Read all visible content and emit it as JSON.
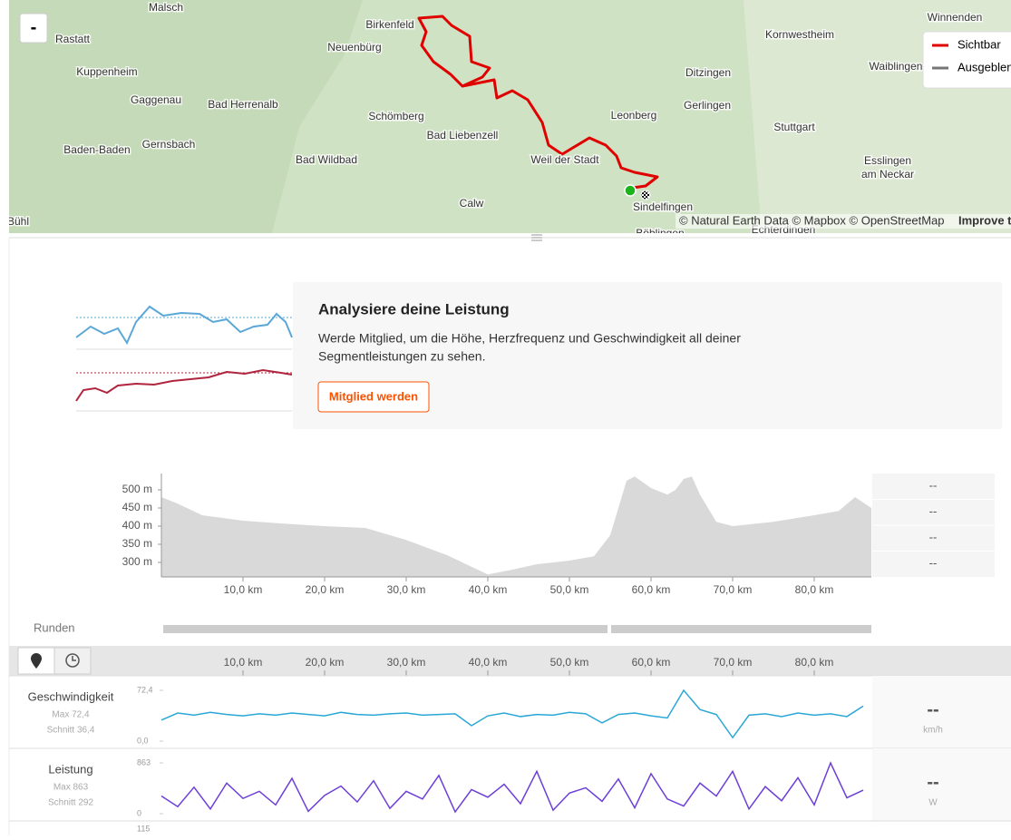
{
  "map": {
    "zoom_out": "-",
    "labels": [
      "Malsch",
      "Rastatt",
      "Kuppenheim",
      "Gaggenau",
      "Bad Herrenalb",
      "Baden-Baden",
      "Gernsbach",
      "Bad Wildbad",
      "Schömberg",
      "Neuenbürg",
      "Birkenfeld",
      "Bad Liebenzell",
      "Weil der Stadt",
      "Calw",
      "Leonberg",
      "Ditzingen",
      "Gerlingen",
      "Kornwestheim",
      "Waiblingen",
      "Stuttgart",
      "Esslingen",
      "am Neckar",
      "Sindelfingen",
      "Bühl",
      "Böblingen",
      "Echterdingen",
      "Winnenden"
    ],
    "legend": [
      "Sichtbar",
      "Ausgeblendet"
    ],
    "attribution": "© Natural Earth Data © Mapbox © OpenStreetMap",
    "improve": "Improve this map"
  },
  "promo": {
    "title": "Analysiere deine Leistung",
    "text_lines": [
      "Werde Mitglied, um die Höhe, Herzfrequenz und Geschwindigkeit all deiner",
      "Segmentleistungen zu sehen."
    ],
    "button": "Mitglied werden"
  },
  "elevation": {
    "type": "area",
    "x": [
      0,
      2,
      5,
      10,
      15,
      20,
      25,
      30,
      35,
      40,
      43,
      46,
      50,
      53,
      55,
      56,
      57,
      58,
      60,
      62,
      63,
      64,
      65,
      66,
      68,
      70,
      75,
      80,
      83,
      85,
      87
    ],
    "values": [
      480,
      462,
      430,
      415,
      407,
      400,
      395,
      362,
      320,
      267,
      280,
      295,
      305,
      317,
      375,
      450,
      525,
      537,
      505,
      487,
      500,
      530,
      537,
      487,
      412,
      400,
      412,
      430,
      442,
      480,
      450
    ],
    "color": "#d9d9d9",
    "xlim": [
      0,
      87
    ],
    "ylim": [
      260,
      545
    ],
    "xticks": [
      {
        "value": 10,
        "label": "10,0 km"
      },
      {
        "value": 20,
        "label": "20,0 km"
      },
      {
        "value": 30,
        "label": "30,0 km"
      },
      {
        "value": 40,
        "label": "40,0 km"
      },
      {
        "value": 50,
        "label": "50,0 km"
      },
      {
        "value": 60,
        "label": "60,0 km"
      },
      {
        "value": 70,
        "label": "70,0 km"
      },
      {
        "value": 80,
        "label": "80,0 km"
      }
    ],
    "yticks": [
      {
        "value": 300,
        "label": "300 m"
      },
      {
        "value": 350,
        "label": "350 m"
      },
      {
        "value": 400,
        "label": "400 m"
      },
      {
        "value": 450,
        "label": "450 m"
      },
      {
        "value": 500,
        "label": "500 m"
      }
    ],
    "side_values": [
      "--",
      "--",
      "--",
      "--"
    ]
  },
  "laps_label": "Runden",
  "streams": [
    {
      "type": "line",
      "name": "Geschwindigkeit",
      "max_label": "Max 72,4",
      "avg_label": "Schnitt 36,4",
      "color": "#2aa7d6",
      "x": [
        0,
        2,
        4,
        6,
        8,
        10,
        12,
        14,
        16,
        18,
        20,
        22,
        24,
        26,
        28,
        30,
        32,
        34,
        36,
        38,
        40,
        42,
        44,
        46,
        48,
        50,
        52,
        54,
        56,
        58,
        60,
        62,
        64,
        66,
        68,
        70,
        72,
        74,
        76,
        78,
        80,
        82,
        84,
        86
      ],
      "values": [
        30,
        40,
        37,
        41,
        38,
        36,
        39,
        37,
        40,
        38,
        36,
        41,
        38,
        37,
        39,
        40,
        37,
        38,
        39,
        22,
        36,
        40,
        35,
        38,
        37,
        41,
        39,
        26,
        38,
        40,
        36,
        33,
        72.4,
        45,
        38,
        5,
        37,
        39,
        35,
        40,
        37,
        39,
        35,
        50
      ],
      "ylim": [
        0,
        72.4
      ],
      "yticks": [
        {
          "value": 0,
          "label": "0,0"
        },
        {
          "value": 72.4,
          "label": "72,4"
        }
      ],
      "side_value": "--",
      "unit": "km/h"
    },
    {
      "type": "line",
      "name": "Leistung",
      "max_label": "Max 863",
      "avg_label": "Schnitt 292",
      "color": "#6d3fd8",
      "x": [
        0,
        2,
        4,
        6,
        8,
        10,
        12,
        14,
        16,
        18,
        20,
        22,
        24,
        26,
        28,
        30,
        32,
        34,
        36,
        38,
        40,
        42,
        44,
        46,
        48,
        50,
        52,
        54,
        56,
        58,
        60,
        62,
        64,
        66,
        68,
        70,
        72,
        74,
        76,
        78,
        80,
        82,
        84,
        86
      ],
      "values": [
        300,
        120,
        450,
        80,
        520,
        260,
        380,
        150,
        600,
        40,
        310,
        470,
        200,
        560,
        90,
        380,
        250,
        650,
        30,
        410,
        280,
        500,
        170,
        720,
        60,
        350,
        440,
        210,
        590,
        100,
        680,
        250,
        130,
        520,
        300,
        720,
        80,
        460,
        220,
        610,
        150,
        863,
        270,
        400
      ],
      "ylim": [
        0,
        863
      ],
      "yticks": [
        0,
        863
      ],
      "side_value": "--",
      "unit": "W"
    }
  ],
  "next_stream_max": "115"
}
